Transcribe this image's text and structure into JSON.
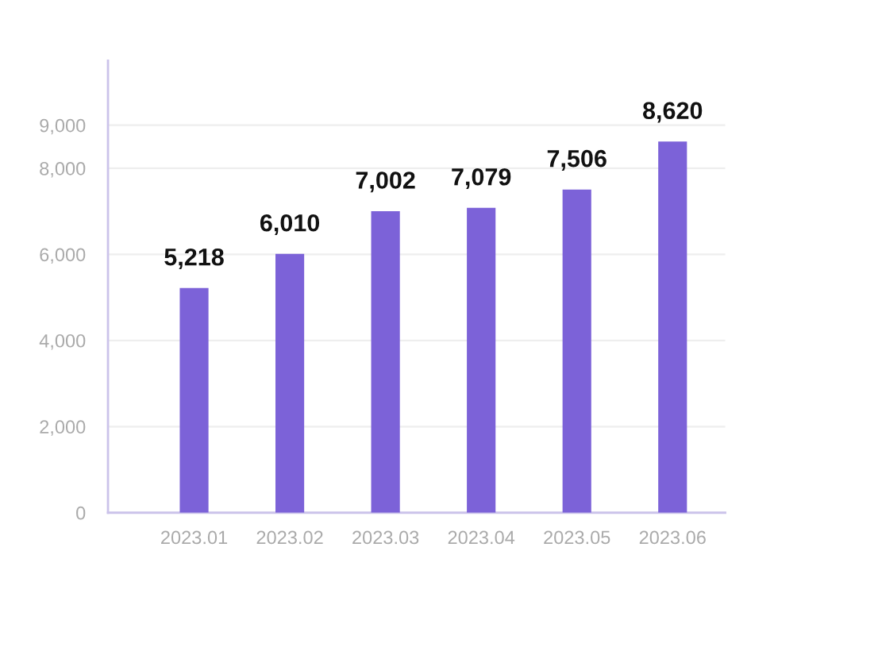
{
  "chart_data": {
    "type": "bar",
    "categories": [
      "2023.01",
      "2023.02",
      "2023.03",
      "2023.04",
      "2023.05",
      "2023.06"
    ],
    "values": [
      5218,
      6010,
      7002,
      7079,
      7506,
      8620
    ],
    "value_labels": [
      "5,218",
      "6,010",
      "7,002",
      "7,079",
      "7,506",
      "8,620"
    ],
    "color": "#7c62d8",
    "ylim": [
      0,
      10500
    ],
    "yticks": [
      0,
      {
        "value": 2000,
        "label": "2,000"
      },
      {
        "value": 4000,
        "label": "4,000"
      },
      {
        "value": 6000,
        "label": "6,000"
      },
      {
        "value": 8000,
        "label": "8,000"
      },
      {
        "value": 9000,
        "label": "9,000"
      }
    ],
    "grid": "y",
    "legend": false
  }
}
